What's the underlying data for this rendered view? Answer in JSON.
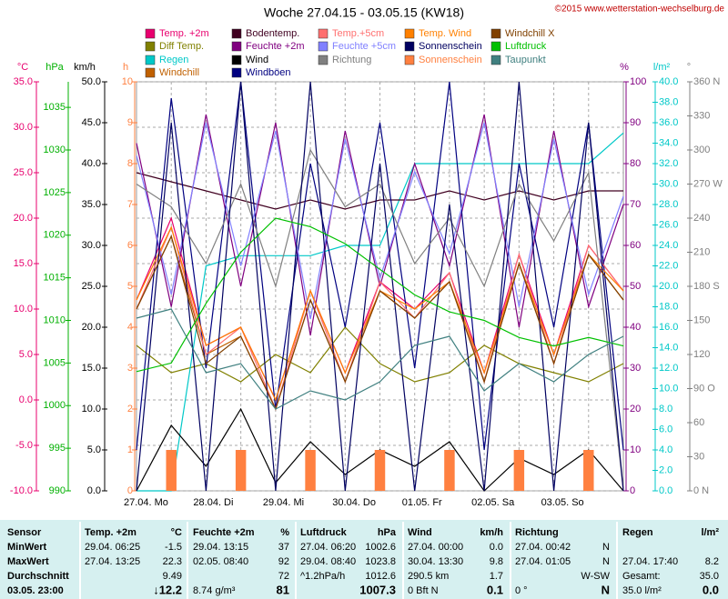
{
  "chart_data": {
    "type": "line",
    "title": "Woche 27.04.15 - 03.05.15 (KW18)",
    "copyright": "©2015 www.wetterstation-wechselburg.de",
    "grid": true,
    "x": [
      "27.04.  Mo",
      null,
      "28.04.  Di",
      null,
      "29.04.  Mi",
      null,
      "30.04.  Do",
      null,
      "01.05.  Fr",
      null,
      "02.05.  Sa",
      null,
      "03.05.  So",
      null,
      null
    ],
    "axes": [
      {
        "label": "°C",
        "color": "#e8006e",
        "lim": [
          -10,
          35
        ],
        "ticks": [
          {
            "value": -10,
            "label": "-10.0"
          },
          {
            "value": -5,
            "label": "-5.0"
          },
          {
            "value": 0,
            "label": "0.0"
          },
          {
            "value": 5,
            "label": "5.0"
          },
          {
            "value": 10,
            "label": "10.0"
          },
          {
            "value": 15,
            "label": "15.0"
          },
          {
            "value": 20,
            "label": "20.0"
          },
          {
            "value": 25,
            "label": "25.0"
          },
          {
            "value": 30,
            "label": "30.0"
          },
          {
            "value": 35,
            "label": "35.0"
          }
        ]
      },
      {
        "label": "hPa",
        "color": "#00b000",
        "lim": [
          990,
          1038
        ],
        "ticks": [
          990,
          995,
          1000,
          1005,
          1010,
          1015,
          1020,
          1025,
          1030,
          1035
        ]
      },
      {
        "label": "km/h",
        "color": "#000000",
        "lim": [
          0,
          50
        ],
        "ticks": [
          {
            "value": 0,
            "label": "0.0"
          },
          {
            "value": 5,
            "label": "5.0"
          },
          {
            "value": 10,
            "label": "10.0"
          },
          {
            "value": 15,
            "label": "15.0"
          },
          {
            "value": 20,
            "label": "20.0"
          },
          {
            "value": 25,
            "label": "25.0"
          },
          {
            "value": 30,
            "label": "30.0"
          },
          {
            "value": 35,
            "label": "35.0"
          },
          {
            "value": 40,
            "label": "40.0"
          },
          {
            "value": 45,
            "label": "45.0"
          },
          {
            "value": 50,
            "label": "50.0"
          }
        ]
      },
      {
        "label": "h",
        "color": "#ff8040",
        "lim": [
          0,
          10
        ],
        "ticks": [
          0,
          1,
          2,
          3,
          4,
          5,
          6,
          7,
          8,
          9,
          10
        ]
      },
      {
        "label": "%",
        "color": "#800080",
        "lim": [
          0,
          100
        ],
        "ticks": [
          0,
          10,
          20,
          30,
          40,
          50,
          60,
          70,
          80,
          90,
          100
        ]
      },
      {
        "label": "l/m²",
        "color": "#00c8c8",
        "lim": [
          0,
          40
        ],
        "ticks": [
          {
            "value": 0,
            "label": "0.0"
          },
          {
            "value": 2,
            "label": "2.0"
          },
          {
            "value": 4,
            "label": "4.0"
          },
          {
            "value": 6,
            "label": "6.0"
          },
          {
            "value": 8,
            "label": "8.0"
          },
          {
            "value": 10,
            "label": "10.0"
          },
          {
            "value": 12,
            "label": "12.0"
          },
          {
            "value": 14,
            "label": "14.0"
          },
          {
            "value": 16,
            "label": "16.0"
          },
          {
            "value": 18,
            "label": "18.0"
          },
          {
            "value": 20,
            "label": "20.0"
          },
          {
            "value": 22,
            "label": "22.0"
          },
          {
            "value": 24,
            "label": "24.0"
          },
          {
            "value": 26,
            "label": "26.0"
          },
          {
            "value": 28,
            "label": "28.0"
          },
          {
            "value": 30,
            "label": "30.0"
          },
          {
            "value": 32,
            "label": "32.0"
          },
          {
            "value": 34,
            "label": "34.0"
          },
          {
            "value": 36,
            "label": "36.0"
          },
          {
            "value": 38,
            "label": "38.0"
          },
          {
            "value": 40,
            "label": "40.0"
          }
        ]
      },
      {
        "label": "°",
        "color": "#808080",
        "lim": [
          0,
          360
        ],
        "ticks": [
          {
            "value": 0,
            "label": "0 N"
          },
          30,
          60,
          {
            "value": 90,
            "label": "90 O"
          },
          120,
          150,
          {
            "value": 180,
            "label": "180 S"
          },
          210,
          240,
          {
            "value": 270,
            "label": "270 W"
          },
          300,
          330,
          {
            "value": 360,
            "label": "360 N"
          }
        ]
      }
    ],
    "series": [
      {
        "name": "Temp. +2m",
        "color": "#e8006e",
        "axis": 0,
        "values": [
          11,
          20,
          6,
          8,
          0,
          12,
          3,
          13,
          10,
          14,
          3,
          16,
          5,
          17,
          12
        ]
      },
      {
        "name": "Diff Temp.",
        "color": "#808000",
        "axis": 0,
        "values": [
          6,
          3,
          4,
          2,
          5,
          3,
          8,
          4,
          2,
          3,
          6,
          4,
          3,
          2,
          4
        ]
      },
      {
        "name": "Regen",
        "color": "#00c8c8",
        "axis": 5,
        "values": [
          0,
          0,
          22,
          23,
          23,
          23,
          24,
          24,
          32,
          32,
          32,
          32,
          32,
          32,
          35
        ]
      },
      {
        "name": "Windchill",
        "color": "#c06000",
        "axis": 0,
        "values": [
          10,
          18,
          5,
          7,
          -1,
          11,
          2,
          12,
          9,
          13,
          2,
          15,
          4,
          16,
          11
        ]
      },
      {
        "name": "Bodentemp.",
        "color": "#400020",
        "axis": 0,
        "values": [
          25,
          24,
          23,
          22,
          21,
          22,
          21,
          22,
          22,
          23,
          22,
          23,
          22,
          23,
          23
        ]
      },
      {
        "name": "Feuchte +2m",
        "color": "#800080",
        "axis": 4,
        "values": [
          85,
          45,
          92,
          50,
          90,
          38,
          88,
          50,
          80,
          55,
          92,
          40,
          88,
          45,
          70
        ]
      },
      {
        "name": "Wind",
        "color": "#000000",
        "axis": 2,
        "values": [
          0,
          8,
          3,
          10,
          1,
          6,
          2,
          5,
          3,
          6,
          0,
          4,
          2,
          5,
          0
        ]
      },
      {
        "name": "Windböen",
        "color": "#000080",
        "axis": 2,
        "values": [
          5,
          48,
          15,
          50,
          10,
          40,
          20,
          45,
          15,
          50,
          5,
          40,
          20,
          45,
          5
        ]
      },
      {
        "name": "Temp.+5cm",
        "color": "#ff7070",
        "axis": 0,
        "values": [
          10,
          19,
          5,
          8,
          -1,
          12,
          2,
          13,
          9,
          14,
          2,
          16,
          4,
          17,
          12
        ]
      },
      {
        "name": "Feuchte +5cm",
        "color": "#8080ff",
        "axis": 4,
        "values": [
          82,
          48,
          90,
          55,
          88,
          42,
          86,
          52,
          78,
          58,
          90,
          45,
          86,
          48,
          72
        ]
      },
      {
        "name": "Richtung",
        "color": "#808080",
        "axis": 6,
        "values": [
          270,
          250,
          200,
          270,
          180,
          300,
          250,
          270,
          200,
          240,
          180,
          270,
          220,
          280,
          0
        ]
      },
      {
        "name": "Temp. Wind",
        "color": "#ff8000",
        "axis": 0,
        "values": [
          11,
          19,
          6,
          8,
          0,
          12,
          3,
          12,
          10,
          13,
          3,
          15,
          5,
          16,
          12
        ]
      },
      {
        "name": "Sonnenschein",
        "color": "#000060",
        "axis": 3,
        "values": [
          0,
          9,
          0,
          10,
          0,
          10,
          0,
          8,
          0,
          7,
          0,
          10,
          0,
          9,
          0
        ]
      },
      {
        "name": "Sonnenschein",
        "color": "#ff8040",
        "axis": 3,
        "kind": "bar",
        "values": [
          0,
          1,
          0,
          1,
          0,
          1,
          0,
          1,
          0,
          1,
          0,
          1,
          0,
          1,
          0
        ]
      },
      {
        "name": "Windchill X",
        "color": "#804000",
        "axis": 0,
        "values": [
          10,
          18,
          4,
          7,
          -1,
          11,
          2,
          12,
          9,
          13,
          2,
          15,
          4,
          16,
          11
        ]
      },
      {
        "name": "Luftdruck",
        "color": "#00c000",
        "axis": 1,
        "values": [
          1004,
          1005,
          1012,
          1018,
          1022,
          1021,
          1019,
          1016,
          1013,
          1011,
          1010,
          1008,
          1007,
          1008,
          1007
        ]
      },
      {
        "name": "Taupunkt",
        "color": "#408080",
        "axis": 0,
        "values": [
          9,
          10,
          3,
          4,
          -1,
          1,
          0,
          2,
          6,
          7,
          1,
          4,
          2,
          5,
          7
        ]
      }
    ]
  },
  "table": {
    "rows": [
      [
        "Sensor",
        "Temp. +2m",
        "°C",
        "Feuchte +2m",
        "%",
        "Luftdruck",
        "hPa",
        "Wind",
        "km/h",
        "Richtung",
        null,
        "Regen",
        "l/m²"
      ],
      [
        "MinWert",
        "29.04.  06:25",
        "-1.5",
        "29.04.  13:15",
        "37",
        "27.04.  06:20",
        "1002.6",
        "27.04.  00:00",
        "0.0",
        "27.04.  00:42",
        "N",
        null,
        null
      ],
      [
        "MaxWert",
        "27.04.  13:25",
        "22.3",
        "02.05.  08:40",
        "92",
        "29.04.  08:40",
        "1023.8",
        "30.04.  13:30",
        "9.8",
        "27.04.  01:05",
        "N",
        "27.04.  17:40",
        "8.2"
      ],
      [
        "Durchschnitt",
        null,
        "9.49",
        null,
        "72",
        "^1.2hPa/h",
        "1012.6",
        "290.5 km",
        "1.7",
        null,
        "W-SW",
        "Gesamt:",
        "35.0"
      ],
      [
        "03.05. 23:00",
        null,
        "↓12.2",
        "8.74 g/m³",
        "81",
        null,
        "1007.3",
        "0 Bft N",
        "0.1",
        "0 °",
        "N",
        "35.0 l/m²",
        "0.0"
      ]
    ]
  }
}
